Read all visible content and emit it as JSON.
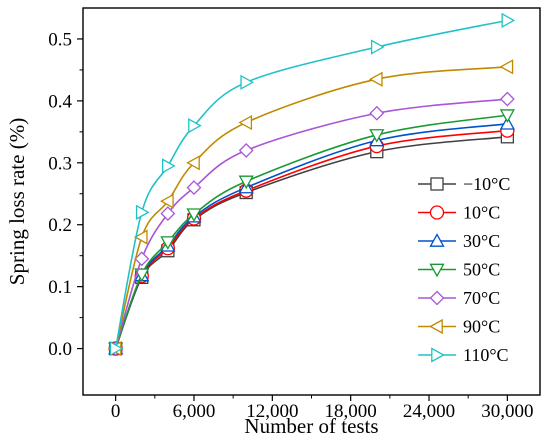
{
  "chart_data": {
    "type": "line",
    "title": "",
    "xlabel": "Number of tests",
    "ylabel": "Spring loss rate (%)",
    "xlim": [
      -2500,
      32500
    ],
    "ylim": [
      -0.075,
      0.55
    ],
    "xticks": [
      0,
      6000,
      12000,
      18000,
      24000,
      30000
    ],
    "xtick_labels": [
      "0",
      "6,000",
      "12,000",
      "18,000",
      "24,000",
      "30,000"
    ],
    "yticks": [
      0.0,
      0.1,
      0.2,
      0.3,
      0.4,
      0.5
    ],
    "ytick_labels": [
      "0.0",
      "0.1",
      "0.2",
      "0.3",
      "0.4",
      "0.5"
    ],
    "grid": false,
    "legend_position": "bottom-right",
    "x": [
      0,
      2000,
      4000,
      6000,
      10000,
      20000,
      30000
    ],
    "series": [
      {
        "name": "−10°C",
        "marker": "square",
        "color": "#404040",
        "values": [
          0,
          0.115,
          0.158,
          0.208,
          0.252,
          0.318,
          0.342
        ]
      },
      {
        "name": "10°C",
        "marker": "circle",
        "color": "#ff0000",
        "values": [
          0,
          0.117,
          0.162,
          0.21,
          0.255,
          0.327,
          0.352
        ]
      },
      {
        "name": "30°C",
        "marker": "triangle-up",
        "color": "#0052cc",
        "values": [
          0,
          0.118,
          0.166,
          0.213,
          0.26,
          0.336,
          0.363
        ]
      },
      {
        "name": "50°C",
        "marker": "triangle-down",
        "color": "#1a9933",
        "values": [
          0,
          0.12,
          0.172,
          0.217,
          0.27,
          0.345,
          0.377
        ]
      },
      {
        "name": "70°C",
        "marker": "diamond",
        "color": "#a855d8",
        "values": [
          0,
          0.145,
          0.218,
          0.26,
          0.32,
          0.38,
          0.403
        ]
      },
      {
        "name": "90°C",
        "marker": "triangle-left",
        "color": "#c08a00",
        "values": [
          0,
          0.18,
          0.238,
          0.3,
          0.365,
          0.435,
          0.455
        ]
      },
      {
        "name": "110°C",
        "marker": "triangle-right",
        "color": "#1fc2c8",
        "values": [
          0,
          0.22,
          0.295,
          0.36,
          0.43,
          0.487,
          0.53
        ]
      }
    ]
  }
}
